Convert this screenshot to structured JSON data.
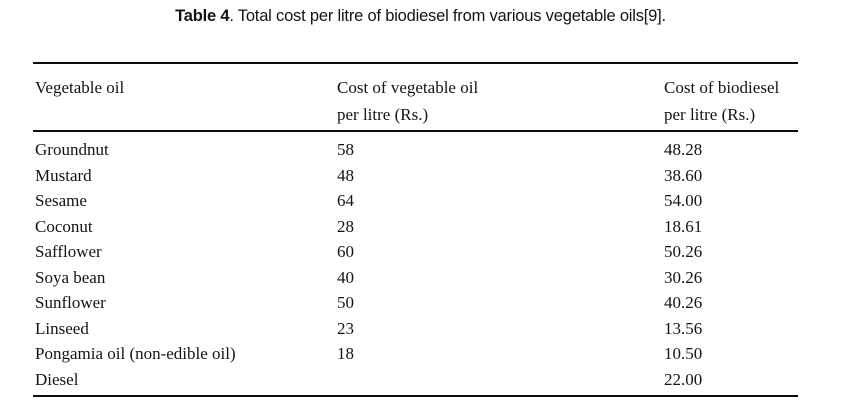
{
  "caption": {
    "label": "Table 4",
    "text": ". Total cost per litre of biodiesel from various vegetable oils[9]."
  },
  "table": {
    "headers": [
      "Vegetable oil",
      "Cost of vegetable oil\nper litre (Rs.)",
      "Cost of biodiesel\nper litre (Rs.)"
    ],
    "rows": [
      [
        "Groundnut",
        "58",
        "48.28"
      ],
      [
        "Mustard",
        "48",
        "38.60"
      ],
      [
        "Sesame",
        "64",
        "54.00"
      ],
      [
        "Coconut",
        "28",
        "18.61"
      ],
      [
        "Safflower",
        "60",
        "50.26"
      ],
      [
        "Soya bean",
        "40",
        "30.26"
      ],
      [
        "Sunflower",
        "50",
        "40.26"
      ],
      [
        "Linseed",
        "23",
        "13.56"
      ],
      [
        "Pongamia oil (non-edible oil)",
        "18",
        "10.50"
      ],
      [
        "Diesel",
        "",
        "22.00"
      ]
    ]
  },
  "chart_data": {
    "type": "table",
    "title": "Table 4. Total cost per litre of biodiesel from various vegetable oils[9].",
    "columns": [
      "Vegetable oil",
      "Cost of vegetable oil per litre (Rs.)",
      "Cost of biodiesel per litre (Rs.)"
    ],
    "categories": [
      "Groundnut",
      "Mustard",
      "Sesame",
      "Coconut",
      "Safflower",
      "Soya bean",
      "Sunflower",
      "Linseed",
      "Pongamia oil (non-edible oil)",
      "Diesel"
    ],
    "series": [
      {
        "name": "Cost of vegetable oil per litre (Rs.)",
        "values": [
          58,
          48,
          64,
          28,
          60,
          40,
          50,
          23,
          18,
          null
        ]
      },
      {
        "name": "Cost of biodiesel per litre (Rs.)",
        "values": [
          48.28,
          38.6,
          54.0,
          18.61,
          50.26,
          30.26,
          40.26,
          13.56,
          10.5,
          22.0
        ]
      }
    ],
    "colors": {
      "text": "#141414",
      "rule": "#0c0c0c",
      "background": "#ffffff"
    }
  }
}
